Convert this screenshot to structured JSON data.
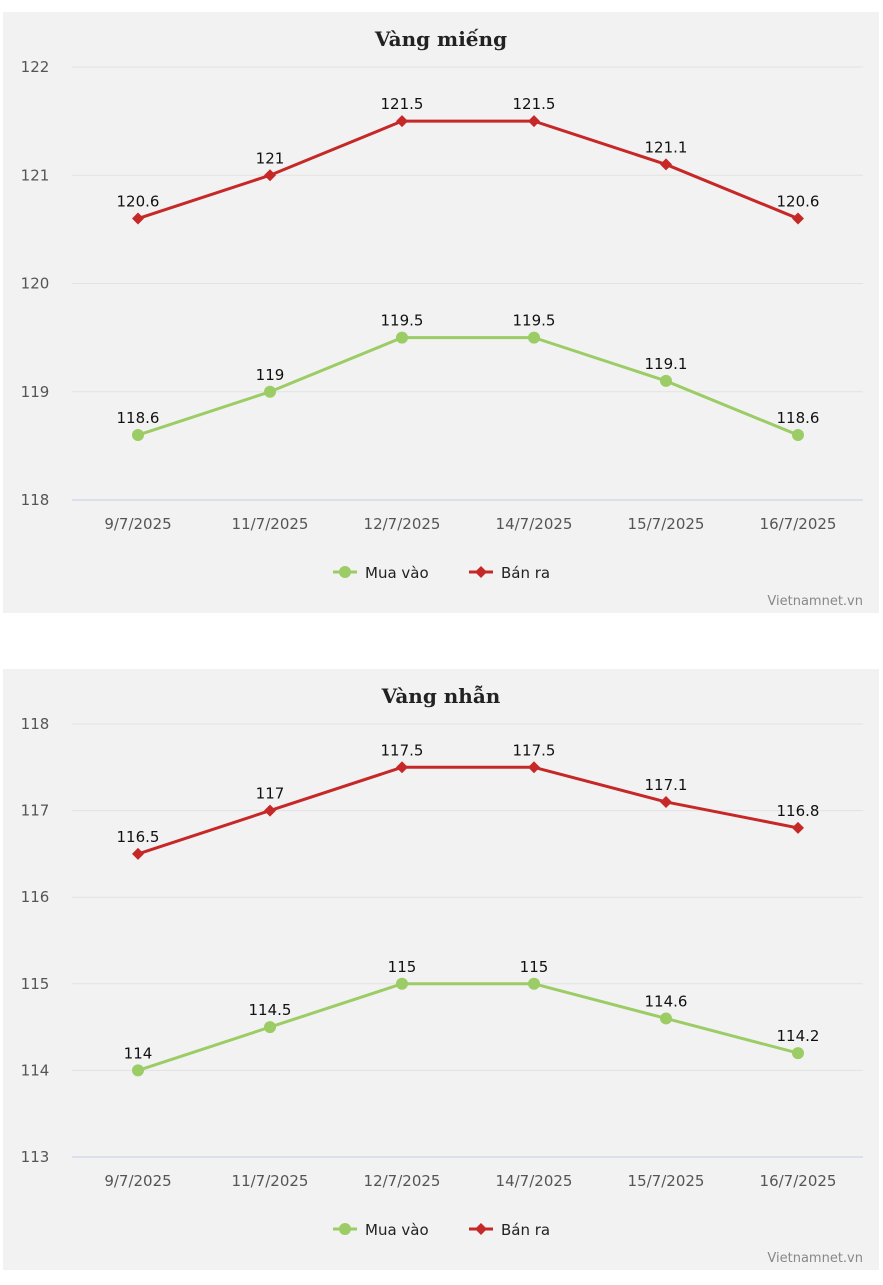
{
  "chart_data": [
    {
      "type": "line",
      "title": "Vàng miếng",
      "categories": [
        "9/7/2025",
        "11/7/2025",
        "12/7/2025",
        "14/7/2025",
        "15/7/2025",
        "16/7/2025"
      ],
      "ylim": [
        118,
        122
      ],
      "yticks": [
        118,
        119,
        120,
        121,
        122
      ],
      "grid": true,
      "legend": "bottom-center",
      "series": [
        {
          "name": "Mua vào",
          "color": "#9ccc65",
          "marker": "circle",
          "values": [
            118.6,
            119,
            119.5,
            119.5,
            119.1,
            118.6
          ]
        },
        {
          "name": "Bán ra",
          "color": "#c62828",
          "marker": "diamond",
          "values": [
            120.6,
            121,
            121.5,
            121.5,
            121.1,
            120.6
          ]
        }
      ],
      "credit": "Vietnamnet.vn"
    },
    {
      "type": "line",
      "title": "Vàng nhẫn",
      "categories": [
        "9/7/2025",
        "11/7/2025",
        "12/7/2025",
        "14/7/2025",
        "15/7/2025",
        "16/7/2025"
      ],
      "ylim": [
        113,
        118
      ],
      "yticks": [
        113,
        114,
        115,
        116,
        117,
        118
      ],
      "grid": true,
      "legend": "bottom-center",
      "series": [
        {
          "name": "Mua vào",
          "color": "#9ccc65",
          "marker": "circle",
          "values": [
            114,
            114.5,
            115,
            115,
            114.6,
            114.2
          ]
        },
        {
          "name": "Bán ra",
          "color": "#c62828",
          "marker": "diamond",
          "values": [
            116.5,
            117,
            117.5,
            117.5,
            117.1,
            116.8
          ]
        }
      ],
      "credit": "Vietnamnet.vn"
    }
  ]
}
